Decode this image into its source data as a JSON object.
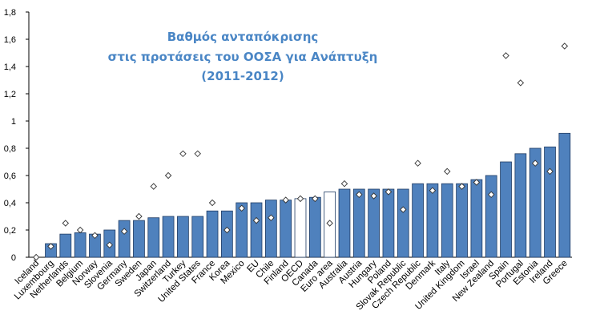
{
  "chart_data": {
    "type": "bar",
    "title_lines": [
      "Βαθμός ανταπόκρισης",
      "στις προτάσεις του ΟΟΣΑ για Ανάπτυξη",
      "(2011-2012)"
    ],
    "ylim": [
      0,
      1.8
    ],
    "yticks": [
      "0",
      "0,2",
      "0,4",
      "0,6",
      "0,8",
      "1",
      "1,2",
      "1,4",
      "1,6",
      "1,8"
    ],
    "grid": false,
    "colors": {
      "bar": "#4f81bd",
      "highlight_bar": "#ffffff",
      "bar_edge": "#1f3b63",
      "marker": "#ffffff",
      "marker_edge": "#333333",
      "title": "#4a86c5"
    },
    "categories": [
      "Iceland",
      "Luxembourg",
      "Netherlands",
      "Belgium",
      "Norway",
      "Slovenia",
      "Germany",
      "Sweden",
      "Japan",
      "Switzerland",
      "Turkey",
      "United States",
      "France",
      "Korea",
      "Mexico",
      "EU",
      "Chile",
      "Finland",
      "OECD",
      "Canada",
      "Euro area",
      "Australia",
      "Austria",
      "Hungary",
      "Poland",
      "Slovak Republic",
      "Czech Republic",
      "Denmark",
      "Italy",
      "United Kingdom",
      "Israel",
      "New Zealand",
      "Spain",
      "Portugal",
      "Estonia",
      "Ireland",
      "Greece"
    ],
    "series": [
      {
        "values": [
          0.0,
          0.1,
          0.17,
          0.18,
          0.17,
          0.2,
          0.27,
          0.27,
          0.29,
          0.3,
          0.3,
          0.3,
          0.34,
          0.34,
          0.4,
          0.4,
          0.42,
          0.42,
          0.43,
          0.44,
          0.48,
          0.5,
          0.5,
          0.5,
          0.5,
          0.5,
          0.54,
          0.54,
          0.54,
          0.54,
          0.57,
          0.6,
          0.7,
          0.76,
          0.8,
          0.81,
          0.91
        ]
      },
      {
        "values": [
          0.0,
          0.08,
          0.25,
          0.2,
          0.16,
          0.09,
          0.19,
          0.3,
          0.52,
          0.6,
          0.76,
          0.76,
          0.4,
          0.2,
          0.36,
          0.27,
          0.29,
          0.42,
          0.43,
          0.43,
          0.25,
          0.54,
          0.46,
          0.45,
          0.48,
          0.35,
          0.69,
          0.49,
          0.63,
          0.52,
          0.55,
          0.46,
          1.48,
          1.28,
          0.69,
          0.63,
          1.55
        ]
      }
    ],
    "highlight_categories": [
      "OECD",
      "Euro area"
    ]
  }
}
